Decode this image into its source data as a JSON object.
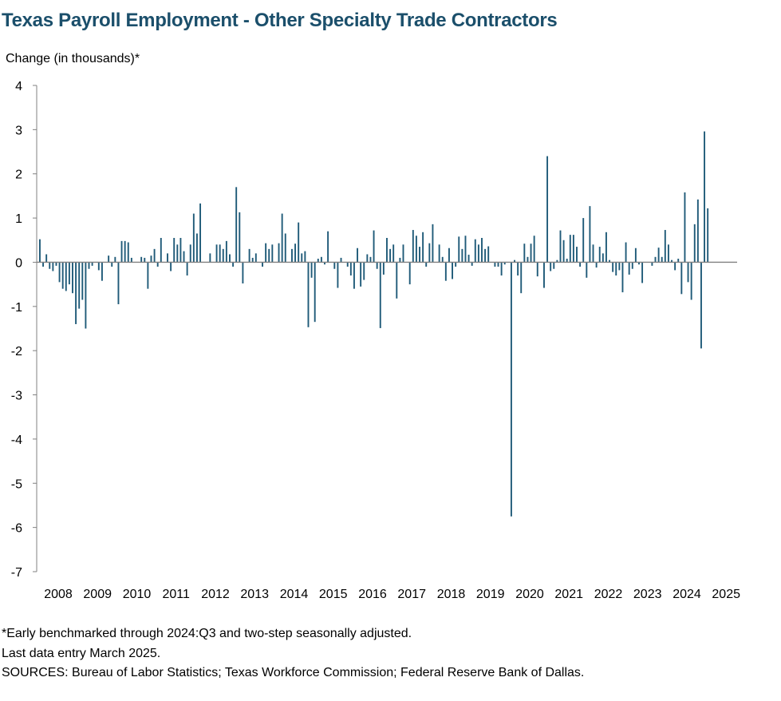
{
  "colors": {
    "title": "#1b4f6b",
    "bar": "#1f5a78",
    "axis": "#808080"
  },
  "chart_data": {
    "type": "bar",
    "title": "Texas Payroll Employment - Other Specialty Trade Contractors",
    "ylabel": "Change (in thousands)*",
    "xlabel": "",
    "ylim": [
      -7,
      4
    ],
    "yticks": [
      "4",
      "3",
      "2",
      "1",
      "0",
      "-1",
      "-2",
      "-3",
      "-4",
      "-5",
      "-6",
      "-7"
    ],
    "xtick_labels": [
      "2008",
      "2009",
      "2010",
      "2011",
      "2012",
      "2013",
      "2014",
      "2015",
      "2016",
      "2017",
      "2018",
      "2019",
      "2020",
      "2021",
      "2022",
      "2023",
      "2024",
      "2025"
    ],
    "start": "2008-01",
    "end": "2025-03",
    "frequency": "monthly",
    "values": [
      0.52,
      -0.1,
      0.18,
      -0.15,
      -0.2,
      -0.08,
      -0.45,
      -0.6,
      -0.65,
      -0.5,
      -0.7,
      -1.4,
      -1.05,
      -0.85,
      -1.5,
      -0.15,
      -0.08,
      0.0,
      -0.18,
      -0.42,
      0.0,
      0.15,
      -0.1,
      0.12,
      -0.95,
      0.48,
      0.48,
      0.45,
      0.1,
      0.0,
      0.0,
      0.12,
      0.1,
      -0.6,
      0.15,
      0.3,
      -0.1,
      0.55,
      0.0,
      0.2,
      -0.2,
      0.55,
      0.4,
      0.55,
      0.25,
      -0.3,
      0.4,
      1.1,
      0.65,
      1.33,
      0.0,
      0.0,
      0.2,
      0.0,
      0.4,
      0.4,
      0.3,
      0.48,
      0.18,
      -0.1,
      1.7,
      1.13,
      -0.48,
      0.0,
      0.3,
      0.1,
      0.2,
      0.0,
      -0.1,
      0.43,
      0.3,
      0.4,
      0.0,
      0.43,
      1.1,
      0.65,
      0.0,
      0.3,
      0.42,
      0.9,
      0.2,
      0.25,
      -1.47,
      -0.35,
      -1.35,
      0.08,
      0.12,
      -0.05,
      0.7,
      0.0,
      -0.15,
      -0.58,
      0.1,
      0.0,
      -0.1,
      -0.3,
      -0.6,
      0.32,
      -0.55,
      -0.4,
      0.18,
      0.12,
      0.72,
      -0.15,
      -1.49,
      -0.28,
      0.55,
      0.3,
      0.4,
      -0.82,
      0.1,
      0.4,
      0.0,
      -0.5,
      0.73,
      0.6,
      0.35,
      0.68,
      -0.1,
      0.43,
      0.86,
      0.0,
      0.4,
      0.12,
      -0.42,
      0.32,
      -0.38,
      -0.1,
      0.58,
      0.3,
      0.6,
      0.17,
      -0.08,
      0.52,
      0.4,
      0.55,
      0.3,
      0.36,
      0.0,
      -0.1,
      -0.1,
      -0.3,
      -0.05,
      0.0,
      -5.75,
      0.05,
      -0.3,
      -0.7,
      0.42,
      0.12,
      0.42,
      0.6,
      -0.32,
      0.0,
      -0.58,
      2.4,
      -0.2,
      -0.15,
      0.05,
      0.72,
      0.5,
      0.08,
      0.62,
      0.62,
      0.35,
      -0.1,
      1.0,
      -0.35,
      1.27,
      0.4,
      -0.12,
      0.35,
      0.2,
      0.68,
      0.05,
      -0.22,
      -0.3,
      -0.18,
      -0.68,
      0.45,
      -0.28,
      -0.15,
      0.32,
      -0.05,
      -0.47,
      0.0,
      0.0,
      -0.08,
      0.12,
      0.33,
      0.12,
      0.73,
      0.4,
      0.05,
      -0.18,
      0.08,
      -0.72,
      1.58,
      -0.45,
      -0.85,
      0.86,
      1.42,
      -1.95,
      2.96,
      1.22,
      0.0,
      0.0
    ]
  },
  "notes": [
    "*Early benchmarked through 2024:Q3 and two-step seasonally adjusted.",
    "Last data entry March 2025.",
    "SOURCES: Bureau of Labor Statistics; Texas Workforce Commission; Federal Reserve Bank of Dallas."
  ]
}
